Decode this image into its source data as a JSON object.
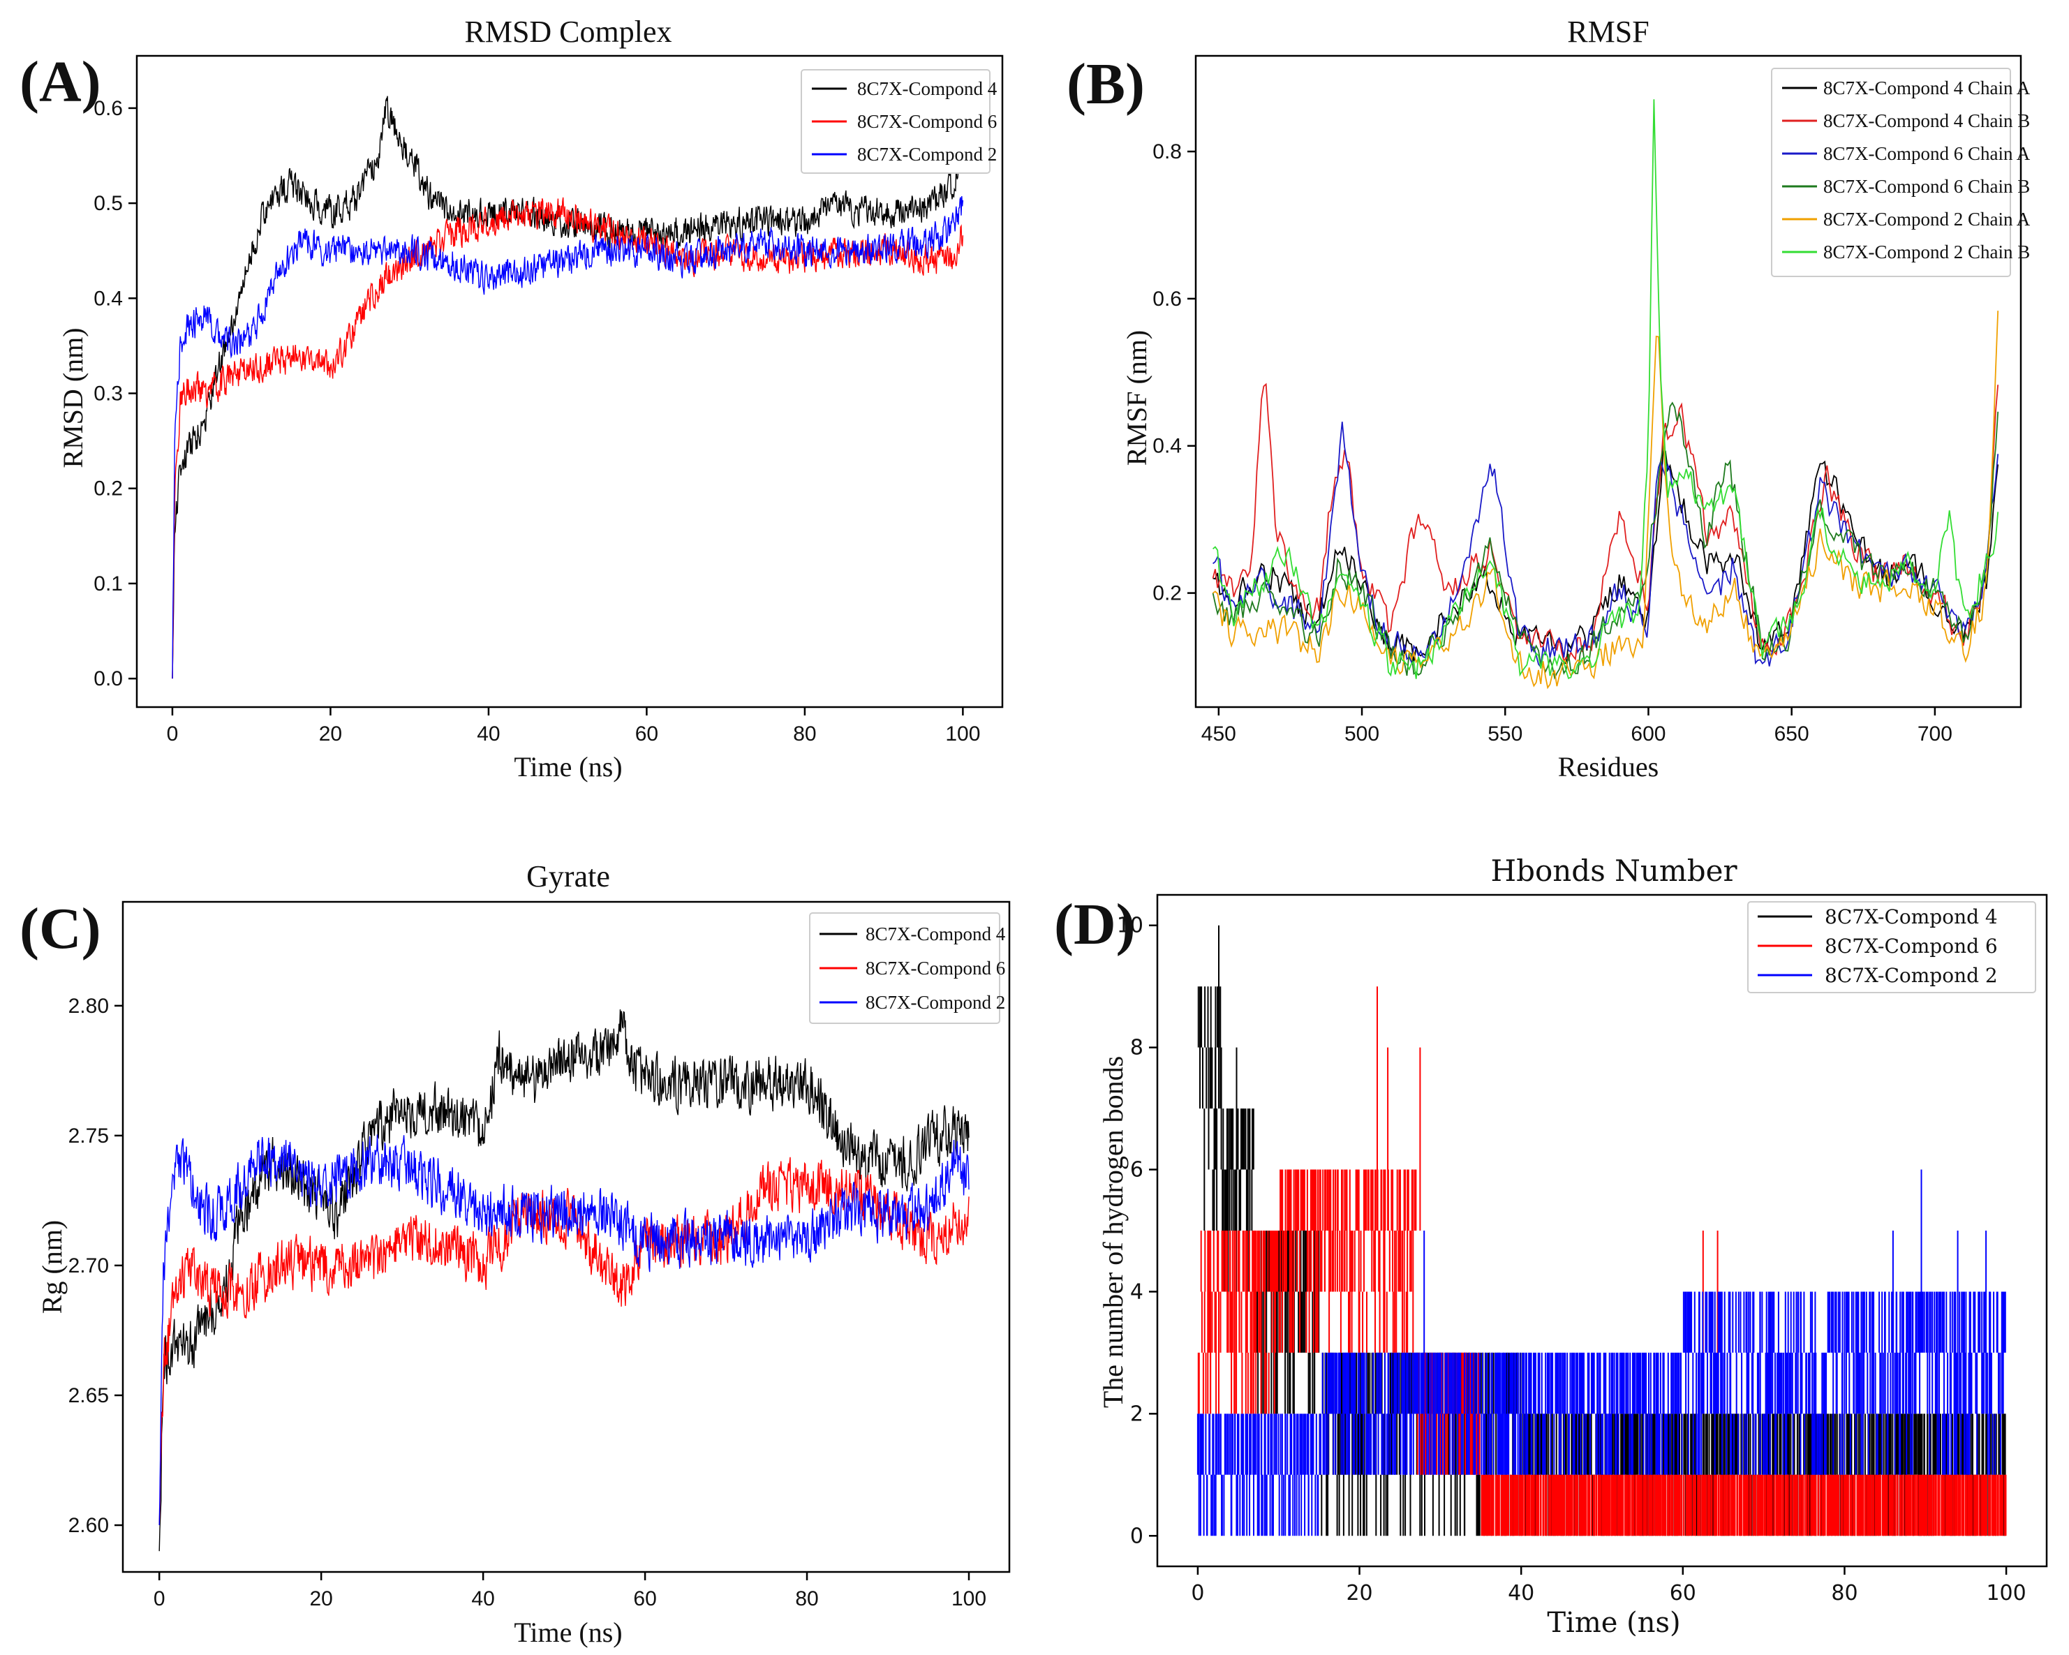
{
  "colors": {
    "compond4": "#000000",
    "compond6": "#ff0000",
    "compond2": "#0000ff",
    "chainA4": "#000000",
    "chainB4": "#e02020",
    "chainA6": "#1a1ac8",
    "chainB6": "#1e7a1e",
    "chainA2": "#f0a000",
    "chainB2": "#33dd33"
  },
  "chart_data": [
    {
      "panel": "(A)",
      "type": "line",
      "title": "RMSD Complex",
      "xlabel": "Time (ns)",
      "ylabel": "RMSD (nm)",
      "xlim": [
        -4.5,
        105
      ],
      "ylim": [
        -0.03,
        0.655
      ],
      "xticks": [
        0,
        20,
        40,
        60,
        80,
        100
      ],
      "yticks": [
        0.0,
        0.1,
        0.2,
        0.3,
        0.4,
        0.5,
        0.6
      ],
      "ytick_labels": [
        "0.0",
        "0.1",
        "0.2",
        "0.3",
        "0.4",
        "0.5",
        "0.6"
      ],
      "legend": "top-right",
      "noise": 0.022,
      "series": [
        {
          "name": "8C7X-Compond 4",
          "color_key": "compond4",
          "x": [
            0,
            0.3,
            1,
            2,
            4,
            6,
            8,
            10,
            12,
            15,
            18,
            20,
            23,
            26,
            27,
            28,
            30,
            33,
            36,
            40,
            45,
            50,
            55,
            60,
            65,
            70,
            75,
            80,
            84,
            88,
            92,
            96,
            99,
            100
          ],
          "y": [
            0.0,
            0.16,
            0.22,
            0.24,
            0.27,
            0.33,
            0.38,
            0.45,
            0.5,
            0.52,
            0.5,
            0.49,
            0.5,
            0.55,
            0.6,
            0.58,
            0.55,
            0.5,
            0.49,
            0.49,
            0.49,
            0.48,
            0.47,
            0.47,
            0.47,
            0.48,
            0.48,
            0.48,
            0.5,
            0.49,
            0.49,
            0.5,
            0.52,
            0.55
          ]
        },
        {
          "name": "8C7X-Compond 6",
          "color_key": "compond6",
          "x": [
            0,
            0.3,
            1,
            2,
            4,
            6,
            8,
            12,
            16,
            20,
            22,
            25,
            28,
            32,
            36,
            40,
            45,
            50,
            55,
            60,
            65,
            70,
            75,
            80,
            85,
            90,
            95,
            99,
            100
          ],
          "y": [
            0.0,
            0.2,
            0.29,
            0.31,
            0.3,
            0.31,
            0.32,
            0.33,
            0.34,
            0.33,
            0.35,
            0.4,
            0.43,
            0.45,
            0.47,
            0.48,
            0.49,
            0.49,
            0.47,
            0.46,
            0.44,
            0.45,
            0.44,
            0.44,
            0.45,
            0.45,
            0.44,
            0.44,
            0.47
          ]
        },
        {
          "name": "8C7X-Compond 2",
          "color_key": "compond2",
          "x": [
            0,
            0.3,
            1,
            2,
            4,
            6,
            8,
            10,
            13,
            16,
            20,
            25,
            30,
            35,
            40,
            45,
            50,
            55,
            60,
            65,
            70,
            75,
            80,
            85,
            90,
            95,
            98,
            100
          ],
          "y": [
            0.0,
            0.25,
            0.35,
            0.37,
            0.38,
            0.36,
            0.35,
            0.36,
            0.42,
            0.46,
            0.45,
            0.45,
            0.45,
            0.44,
            0.42,
            0.43,
            0.44,
            0.45,
            0.45,
            0.44,
            0.45,
            0.46,
            0.45,
            0.45,
            0.45,
            0.46,
            0.47,
            0.5
          ]
        }
      ]
    },
    {
      "panel": "(B)",
      "type": "line",
      "title": "RMSF",
      "xlabel": "Residues",
      "ylabel": "RMSF (nm)",
      "xlim": [
        442,
        730
      ],
      "ylim": [
        0.045,
        0.93
      ],
      "xticks": [
        450,
        500,
        550,
        600,
        650,
        700
      ],
      "yticks": [
        0.2,
        0.4,
        0.6,
        0.8
      ],
      "ytick_labels": [
        "0.2",
        "0.4",
        "0.6",
        "0.8"
      ],
      "legend": "top-right",
      "noise": 0.03,
      "series": [
        {
          "name": "8C7X-Compond 4 Chain A",
          "color_key": "chainA4",
          "x": [
            448,
            455,
            465,
            475,
            485,
            492,
            500,
            510,
            520,
            530,
            545,
            555,
            570,
            580,
            590,
            600,
            605,
            612,
            620,
            630,
            640,
            650,
            660,
            670,
            680,
            690,
            700,
            710,
            718,
            722
          ],
          "y": [
            0.22,
            0.18,
            0.24,
            0.2,
            0.16,
            0.28,
            0.2,
            0.13,
            0.12,
            0.18,
            0.22,
            0.14,
            0.12,
            0.14,
            0.22,
            0.15,
            0.38,
            0.32,
            0.24,
            0.25,
            0.12,
            0.16,
            0.38,
            0.3,
            0.22,
            0.24,
            0.2,
            0.14,
            0.22,
            0.36
          ]
        },
        {
          "name": "8C7X-Compond 4 Chain B",
          "color_key": "chainB4",
          "x": [
            448,
            455,
            461,
            466,
            470,
            478,
            485,
            490,
            494,
            500,
            510,
            520,
            530,
            545,
            555,
            570,
            580,
            590,
            600,
            605,
            612,
            620,
            630,
            640,
            650,
            662,
            670,
            680,
            690,
            700,
            710,
            718,
            722
          ],
          "y": [
            0.22,
            0.2,
            0.24,
            0.5,
            0.28,
            0.2,
            0.18,
            0.36,
            0.4,
            0.24,
            0.14,
            0.32,
            0.2,
            0.26,
            0.14,
            0.12,
            0.14,
            0.3,
            0.18,
            0.42,
            0.44,
            0.28,
            0.3,
            0.12,
            0.16,
            0.36,
            0.28,
            0.22,
            0.24,
            0.2,
            0.14,
            0.22,
            0.5
          ]
        },
        {
          "name": "8C7X-Compond 6 Chain A",
          "color_key": "chainA6",
          "x": [
            448,
            455,
            465,
            475,
            485,
            493,
            500,
            510,
            520,
            530,
            546,
            555,
            570,
            580,
            590,
            600,
            604,
            612,
            620,
            630,
            638,
            645,
            650,
            660,
            670,
            680,
            690,
            700,
            710,
            718,
            722
          ],
          "y": [
            0.24,
            0.18,
            0.22,
            0.18,
            0.15,
            0.42,
            0.22,
            0.13,
            0.12,
            0.16,
            0.38,
            0.13,
            0.12,
            0.14,
            0.2,
            0.16,
            0.4,
            0.3,
            0.18,
            0.24,
            0.1,
            0.13,
            0.16,
            0.34,
            0.28,
            0.22,
            0.24,
            0.2,
            0.14,
            0.22,
            0.4
          ]
        },
        {
          "name": "8C7X-Compond 6 Chain B",
          "color_key": "chainB6",
          "x": [
            448,
            455,
            465,
            475,
            485,
            492,
            500,
            510,
            520,
            530,
            546,
            555,
            570,
            580,
            590,
            598,
            602,
            607,
            612,
            620,
            628,
            640,
            650,
            660,
            670,
            680,
            690,
            700,
            710,
            718,
            722
          ],
          "y": [
            0.2,
            0.16,
            0.2,
            0.16,
            0.14,
            0.24,
            0.2,
            0.12,
            0.1,
            0.16,
            0.26,
            0.13,
            0.1,
            0.12,
            0.18,
            0.2,
            0.3,
            0.44,
            0.42,
            0.28,
            0.38,
            0.12,
            0.15,
            0.32,
            0.26,
            0.22,
            0.24,
            0.2,
            0.14,
            0.22,
            0.45
          ]
        },
        {
          "name": "8C7X-Compond 2 Chain A",
          "color_key": "chainA2",
          "x": [
            448,
            455,
            465,
            475,
            485,
            492,
            500,
            510,
            520,
            530,
            546,
            555,
            570,
            580,
            590,
            598,
            603,
            607,
            612,
            620,
            630,
            640,
            650,
            660,
            670,
            680,
            690,
            700,
            710,
            718,
            722
          ],
          "y": [
            0.2,
            0.14,
            0.16,
            0.14,
            0.12,
            0.2,
            0.18,
            0.1,
            0.1,
            0.14,
            0.22,
            0.1,
            0.09,
            0.1,
            0.14,
            0.12,
            0.58,
            0.3,
            0.2,
            0.16,
            0.2,
            0.1,
            0.14,
            0.28,
            0.22,
            0.2,
            0.22,
            0.18,
            0.12,
            0.2,
            0.57
          ]
        },
        {
          "name": "8C7X-Compond 2 Chain B",
          "color_key": "chainB2",
          "x": [
            448,
            455,
            465,
            475,
            485,
            492,
            500,
            510,
            520,
            530,
            546,
            555,
            570,
            580,
            590,
            597,
            600,
            602,
            604,
            607,
            612,
            620,
            630,
            640,
            650,
            660,
            670,
            680,
            690,
            700,
            705,
            710,
            718,
            722
          ],
          "y": [
            0.26,
            0.16,
            0.22,
            0.26,
            0.14,
            0.22,
            0.18,
            0.1,
            0.1,
            0.16,
            0.24,
            0.1,
            0.1,
            0.12,
            0.16,
            0.18,
            0.4,
            0.9,
            0.5,
            0.34,
            0.38,
            0.3,
            0.34,
            0.12,
            0.16,
            0.3,
            0.24,
            0.2,
            0.24,
            0.2,
            0.3,
            0.16,
            0.24,
            0.3
          ]
        }
      ]
    },
    {
      "panel": "(C)",
      "type": "line",
      "title": "Gyrate",
      "xlabel": "Time (ns)",
      "ylabel": "Rg (nm)",
      "xlim": [
        -4.5,
        105
      ],
      "ylim": [
        2.582,
        2.84
      ],
      "xticks": [
        0,
        20,
        40,
        60,
        80,
        100
      ],
      "yticks": [
        2.6,
        2.65,
        2.7,
        2.75,
        2.8
      ],
      "ytick_labels": [
        "2.60",
        "2.65",
        "2.70",
        "2.75",
        "2.80"
      ],
      "legend": "top-right",
      "noise": 0.014,
      "series": [
        {
          "name": "8C7X-Compond 4",
          "color_key": "compond4",
          "x": [
            0,
            0.5,
            2,
            4,
            6,
            8,
            10,
            14,
            18,
            22,
            26,
            30,
            35,
            40,
            42,
            46,
            50,
            54,
            57,
            60,
            65,
            70,
            75,
            80,
            84,
            88,
            92,
            96,
            100
          ],
          "y": [
            2.59,
            2.66,
            2.67,
            2.67,
            2.68,
            2.69,
            2.72,
            2.74,
            2.73,
            2.72,
            2.75,
            2.76,
            2.76,
            2.75,
            2.78,
            2.77,
            2.78,
            2.78,
            2.79,
            2.77,
            2.77,
            2.77,
            2.77,
            2.77,
            2.75,
            2.74,
            2.74,
            2.75,
            2.75
          ]
        },
        {
          "name": "8C7X-Compond 6",
          "color_key": "compond6",
          "x": [
            0,
            0.5,
            2,
            4,
            6,
            10,
            15,
            20,
            25,
            30,
            35,
            40,
            45,
            50,
            55,
            57,
            60,
            65,
            70,
            75,
            80,
            85,
            90,
            95,
            100
          ],
          "y": [
            2.6,
            2.66,
            2.69,
            2.7,
            2.69,
            2.69,
            2.7,
            2.7,
            2.7,
            2.71,
            2.71,
            2.7,
            2.72,
            2.72,
            2.7,
            2.69,
            2.71,
            2.71,
            2.71,
            2.73,
            2.73,
            2.73,
            2.72,
            2.71,
            2.72
          ]
        },
        {
          "name": "8C7X-Compond 2",
          "color_key": "compond2",
          "x": [
            0,
            0.5,
            2,
            3,
            5,
            8,
            12,
            16,
            20,
            25,
            30,
            35,
            40,
            45,
            50,
            55,
            60,
            65,
            70,
            75,
            80,
            85,
            90,
            95,
            98,
            100
          ],
          "y": [
            2.6,
            2.7,
            2.74,
            2.74,
            2.72,
            2.72,
            2.74,
            2.74,
            2.73,
            2.74,
            2.74,
            2.73,
            2.72,
            2.72,
            2.72,
            2.72,
            2.71,
            2.71,
            2.71,
            2.71,
            2.71,
            2.72,
            2.72,
            2.72,
            2.74,
            2.73
          ]
        }
      ]
    },
    {
      "panel": "(D)",
      "type": "line",
      "title": "Hbonds Number",
      "xlabel": "Time (ns)",
      "ylabel": "The number of hydrogen bonds",
      "xlim": [
        -5,
        105
      ],
      "ylim": [
        -0.5,
        10.5
      ],
      "xticks": [
        0,
        20,
        40,
        60,
        80,
        100
      ],
      "yticks": [
        0,
        2,
        4,
        6,
        8,
        10
      ],
      "ytick_labels": [
        "0",
        "2",
        "4",
        "6",
        "8",
        "10"
      ],
      "legend": "top-right",
      "series": [
        {
          "name": "8C7X-Compond 4",
          "color_key": "compond4",
          "segments": [
            [
              0,
              3,
              5,
              9
            ],
            [
              3,
              7,
              4,
              7
            ],
            [
              7,
              15,
              2,
              5
            ],
            [
              15,
              40,
              0,
              3
            ],
            [
              40,
              100,
              0,
              2
            ]
          ],
          "peaks": [
            [
              2.6,
              10
            ],
            [
              2.2,
              9
            ],
            [
              4.8,
              8
            ]
          ]
        },
        {
          "name": "8C7X-Compond 6",
          "color_key": "compond6",
          "segments": [
            [
              0,
              10,
              2,
              5
            ],
            [
              10,
              27,
              3,
              6
            ],
            [
              27,
              35,
              1,
              3
            ],
            [
              35,
              100,
              0,
              1
            ]
          ],
          "peaks": [
            [
              22.2,
              9
            ],
            [
              23.5,
              8
            ],
            [
              27.5,
              8
            ],
            [
              62.5,
              5
            ],
            [
              64.3,
              5
            ]
          ]
        },
        {
          "name": "8C7X-Compond 2",
          "color_key": "compond2",
          "segments": [
            [
              0,
              15,
              0,
              2
            ],
            [
              15,
              35,
              1,
              3
            ],
            [
              35,
              60,
              1,
              3
            ],
            [
              60,
              100,
              1,
              4
            ]
          ],
          "peaks": [
            [
              89.5,
              6
            ],
            [
              86,
              5
            ],
            [
              94,
              5
            ],
            [
              97.5,
              5
            ],
            [
              62,
              4
            ],
            [
              28,
              5
            ]
          ]
        }
      ]
    }
  ]
}
